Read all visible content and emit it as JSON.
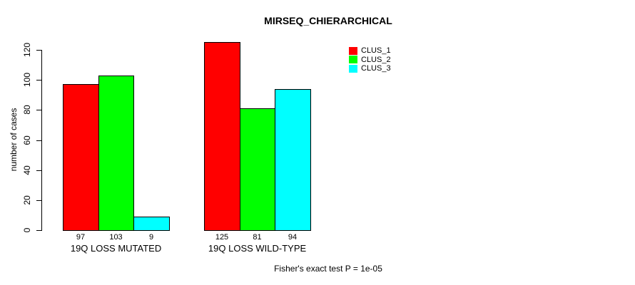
{
  "chart_data": {
    "type": "bar",
    "title": "MIRSEQ_CHIERARCHICAL",
    "xlabel": "",
    "ylabel": "number of cases",
    "categories": [
      "19Q LOSS MUTATED",
      "19Q LOSS WILD-TYPE"
    ],
    "series": [
      {
        "name": "CLUS_1",
        "color": "#ff0000",
        "values": [
          97,
          125
        ]
      },
      {
        "name": "CLUS_2",
        "color": "#00ff00",
        "values": [
          103,
          81
        ]
      },
      {
        "name": "CLUS_3",
        "color": "#00ffff",
        "values": [
          9,
          94
        ]
      }
    ],
    "bar_value_labels": [
      [
        "97",
        "103",
        "9"
      ],
      [
        "125",
        "81",
        "94"
      ]
    ],
    "yticks": [
      0,
      20,
      40,
      60,
      80,
      100,
      120
    ],
    "ylim": [
      0,
      125
    ],
    "grid": false,
    "legend_position": "top-right",
    "bar_border_color": "#000000",
    "annotation": "Fisher's exact test P = 1e-05"
  }
}
